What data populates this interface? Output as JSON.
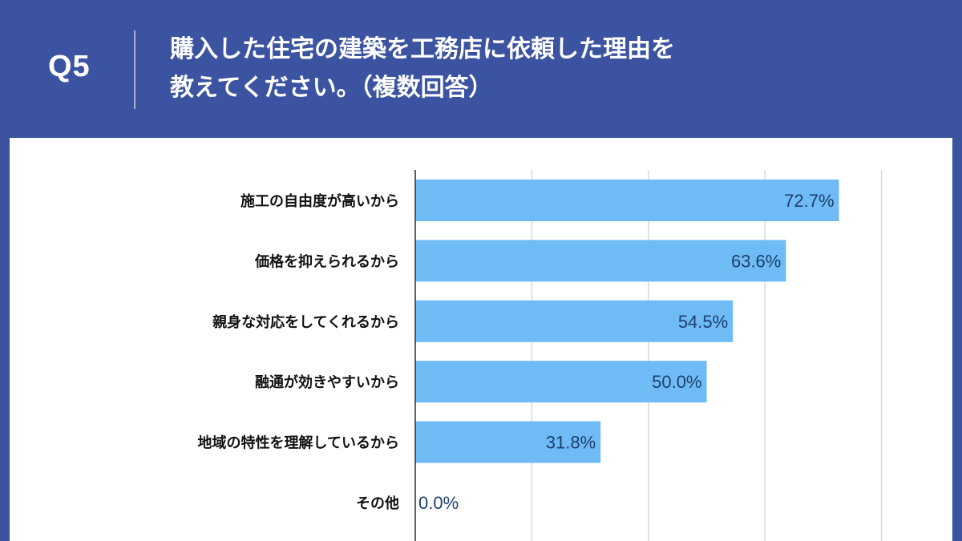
{
  "question": {
    "number": "Q5",
    "line1": "購入した住宅の建築を工務店に依頼した理由を",
    "line2": "教えてください。（複数回答）"
  },
  "colors": {
    "header_bg": "#3b53a0",
    "bar": "#6ebbf5",
    "value_text": "#1d3f6e",
    "grid": "#d9d9d9"
  },
  "chart_data": {
    "type": "bar",
    "orientation": "horizontal",
    "categories": [
      "施工の自由度が高いから",
      "価格を抑えられるから",
      "親身な対応をしてくれるから",
      "融通が効きやすいから",
      "地域の特性を理解しているから",
      "その他"
    ],
    "values": [
      72.7,
      63.6,
      54.5,
      50.0,
      31.8,
      0.0
    ],
    "value_labels": [
      "72.7%",
      "63.6%",
      "54.5%",
      "50.0%",
      "31.8%",
      "0.0%"
    ],
    "xlim": [
      0,
      80
    ],
    "grid": true
  }
}
